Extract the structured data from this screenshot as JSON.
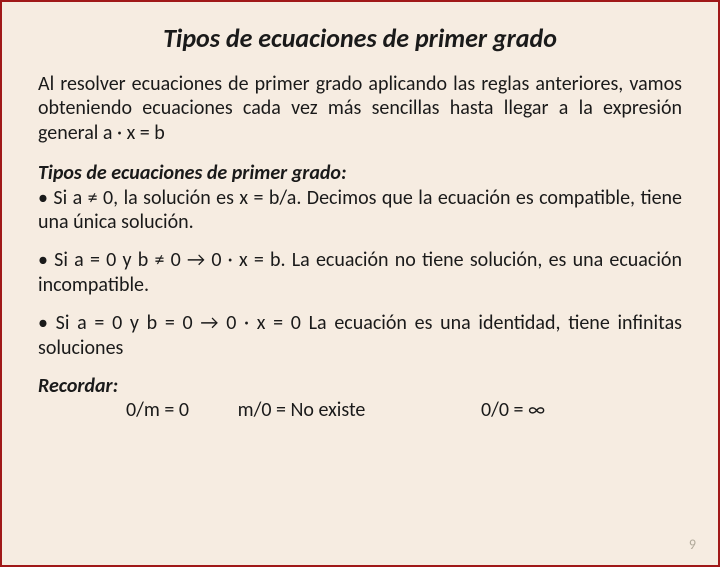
{
  "title": "Tipos de ecuaciones de primer grado",
  "intro": "Al resolver ecuaciones de primer grado aplicando las reglas anteriores, vamos obteniendo ecuaciones cada vez más sencillas hasta llegar a la expresión general a · x = b",
  "subheading": "Tipos de ecuaciones de primer grado:",
  "bullet1": "• Si a ≠ 0, la solución es x = b/a. Decimos que la ecuación es compatible, tiene una única solución.",
  "bullet2": "• Si a = 0 y b ≠ 0 → 0 · x = b. La ecuación no tiene solución, es una ecuación incompatible.",
  "bullet3": "• Si a = 0 y b = 0 → 0 · x = 0 La ecuación es una identidad, tiene infinitas soluciones",
  "remember_label": "Recordar:",
  "remember_col1": "0/m = 0",
  "remember_col2": "m/0 = No existe",
  "remember_col3": "0/0 = ∞",
  "page_number": "9",
  "colors": {
    "background": "#f6ece1",
    "border": "#a01818",
    "text": "#1a1a1a",
    "page_number": "#b0a99a"
  }
}
